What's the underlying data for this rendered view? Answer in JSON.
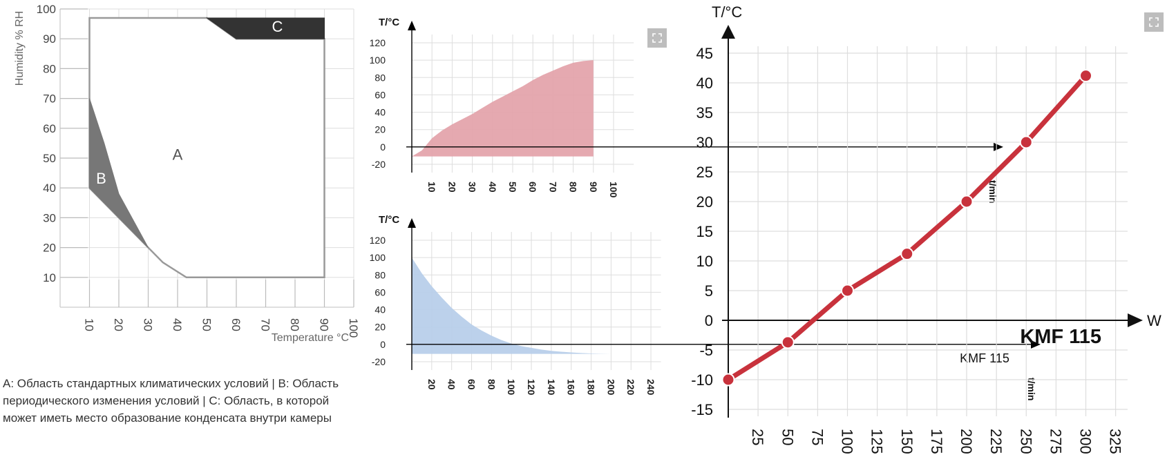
{
  "caption": "А: Область стандартных климатических условий | В: Область периодического изменения условий | С: Область, в которой может иметь место образование конденсата внутри камеры",
  "expand_icon": "fullscreen-expand-icon",
  "chart_data": [
    {
      "type": "area",
      "xlabel": "Temperature °C",
      "ylabel": "Humidity % RH",
      "xlim": [
        0,
        100
      ],
      "ylim": [
        0,
        100
      ],
      "x_ticks": [
        10,
        20,
        30,
        40,
        50,
        60,
        70,
        80,
        90,
        100
      ],
      "y_ticks": [
        10,
        20,
        30,
        40,
        50,
        60,
        70,
        80,
        90,
        100
      ],
      "grid": true,
      "regions": [
        {
          "label": "A",
          "color": "#ffffff",
          "points": [
            [
              10,
              40
            ],
            [
              10,
              97
            ],
            [
              50,
              97
            ],
            [
              60,
              90
            ],
            [
              90,
              90
            ],
            [
              90,
              10
            ],
            [
              43,
              10
            ],
            [
              35,
              15
            ],
            [
              30,
              20
            ],
            [
              20,
              30
            ],
            [
              10,
              40
            ]
          ]
        },
        {
          "label": "B",
          "color": "#777777",
          "points": [
            [
              10,
              70
            ],
            [
              15,
              55
            ],
            [
              20,
              38
            ],
            [
              30,
              20
            ],
            [
              20,
              30
            ],
            [
              10,
              40
            ]
          ]
        },
        {
          "label": "C",
          "color": "#333333",
          "points": [
            [
              50,
              97
            ],
            [
              90,
              97
            ],
            [
              90,
              90
            ],
            [
              60,
              90
            ]
          ]
        }
      ],
      "region_labels": [
        {
          "text": "A",
          "x": 40,
          "y": 51
        },
        {
          "text": "B",
          "x": 14,
          "y": 43
        },
        {
          "text": "C",
          "x": 74,
          "y": 94
        }
      ]
    },
    {
      "type": "area",
      "xlabel": "t/min",
      "ylabel": "T/°C",
      "xlim": [
        0,
        110
      ],
      "ylim": [
        -20,
        130
      ],
      "x_ticks": [
        10,
        20,
        30,
        40,
        50,
        60,
        70,
        80,
        90,
        100
      ],
      "y_ticks": [
        -20,
        0,
        20,
        40,
        60,
        80,
        100,
        120
      ],
      "grid": true,
      "color": "#e3a2a9",
      "label": "KMF 115",
      "x": [
        0,
        5,
        10,
        15,
        20,
        25,
        30,
        35,
        40,
        45,
        50,
        55,
        60,
        65,
        70,
        75,
        80,
        85,
        90
      ],
      "y": [
        -11,
        -4,
        10,
        19,
        26,
        32,
        38,
        45,
        52,
        58,
        64,
        70,
        77,
        83,
        88,
        93,
        97,
        99,
        100
      ],
      "fill_to": -11
    },
    {
      "type": "area",
      "xlabel": "t/min",
      "ylabel": "T/°C",
      "xlim": [
        0,
        250
      ],
      "ylim": [
        -20,
        130
      ],
      "x_ticks": [
        20,
        40,
        60,
        80,
        100,
        120,
        140,
        160,
        180,
        200,
        220,
        240
      ],
      "y_ticks": [
        -20,
        0,
        20,
        40,
        60,
        80,
        100,
        120
      ],
      "grid": true,
      "color": "#b6cde9",
      "label": "KMF 115",
      "x": [
        0,
        10,
        20,
        30,
        40,
        50,
        60,
        70,
        80,
        90,
        100,
        110,
        120,
        130,
        140,
        150,
        160,
        170,
        180,
        190,
        200,
        210
      ],
      "y": [
        100,
        82,
        67,
        54,
        42,
        32,
        23,
        16,
        10,
        5,
        1,
        -2,
        -4,
        -6,
        -7.5,
        -8.5,
        -9.3,
        -10,
        -10.5,
        -10.8,
        -11,
        -11
      ],
      "fill_to": -11
    },
    {
      "type": "line",
      "xlabel": "W",
      "ylabel": "T/°C",
      "xlim": [
        0,
        335
      ],
      "ylim": [
        -15,
        45
      ],
      "x_ticks": [
        25,
        50,
        75,
        100,
        125,
        150,
        175,
        200,
        225,
        250,
        275,
        300,
        325
      ],
      "y_ticks": [
        -15,
        -10,
        -5,
        0,
        5,
        10,
        15,
        20,
        25,
        30,
        35,
        40,
        45
      ],
      "grid": true,
      "color": "#c8323c",
      "label": "KMF 115",
      "x": [
        0,
        50,
        100,
        150,
        200,
        250,
        300
      ],
      "y": [
        -10,
        -3.7,
        5,
        11.2,
        20,
        30,
        41.2
      ]
    }
  ]
}
